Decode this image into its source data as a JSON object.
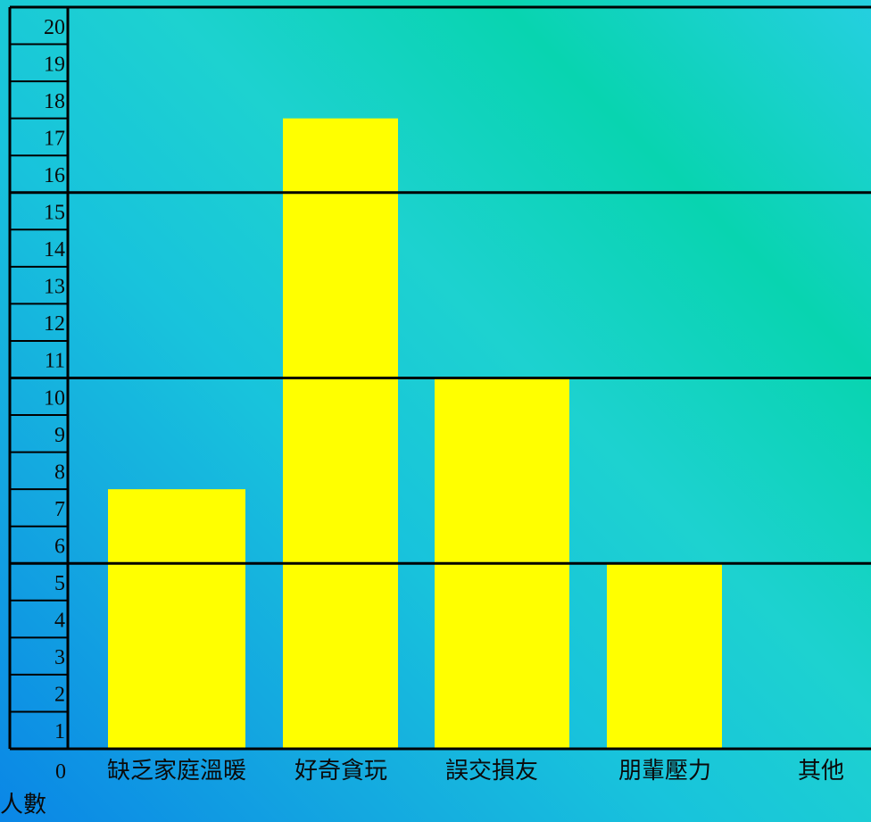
{
  "chart_data": {
    "type": "bar",
    "categories": [
      "缺乏家庭溫暖",
      "好奇貪玩",
      "誤交損友",
      "朋輩壓力",
      "其他"
    ],
    "values": [
      7,
      17,
      10,
      5,
      0
    ],
    "ylabel": "人數",
    "ylim": [
      0,
      20
    ],
    "y_ticks": [
      1,
      2,
      3,
      4,
      5,
      6,
      7,
      8,
      9,
      10,
      11,
      12,
      13,
      14,
      15,
      16,
      17,
      18,
      19,
      20
    ],
    "zero_label": "0",
    "major_gridlines": [
      5,
      10,
      15,
      20
    ],
    "grid": true,
    "bar_color": "#ffff00",
    "line_color": "#000000"
  }
}
